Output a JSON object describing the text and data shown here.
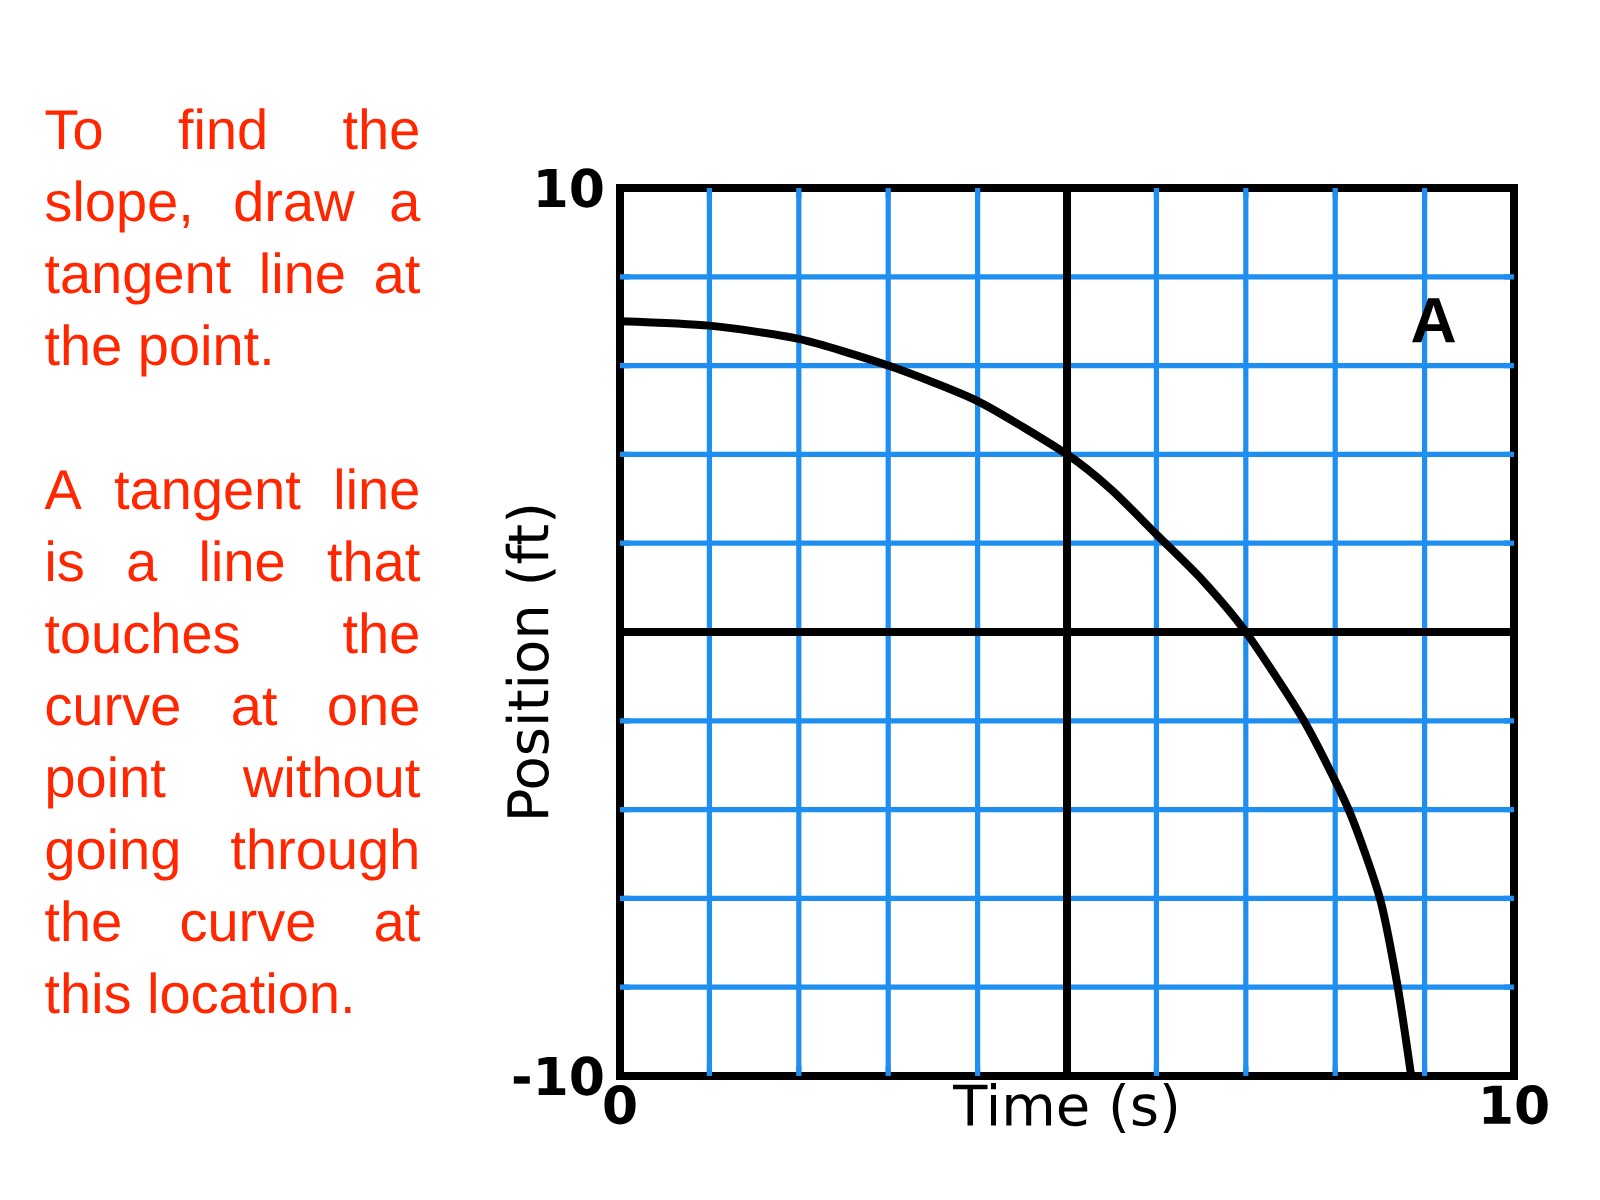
{
  "chart_data": {
    "type": "line",
    "xlabel": "Time (s)",
    "ylabel": "Position (ft)",
    "annotations": [
      "To find the slope, draw a tangent line at the point.",
      "A tangent line is a line that touches the curve at one point without going through the curve at this location.",
      "A"
    ],
    "x": [
      0,
      1,
      2,
      3,
      4,
      5,
      5.5,
      6,
      6.5,
      7,
      7.65,
      8.15,
      8.5,
      8.7,
      8.85
    ],
    "values": [
      7,
      6.9,
      6.6,
      6,
      5.2,
      4,
      3.2,
      2.2,
      1.2,
      0,
      -2,
      -4,
      -6,
      -8,
      -10
    ],
    "color": "#000000",
    "xlim": [
      0,
      10
    ],
    "ylim": [
      -10,
      10
    ],
    "xticks": [
      0,
      {
        "value": 1,
        "label": null
      },
      {
        "value": 2,
        "label": null
      },
      {
        "value": 3,
        "label": null
      },
      {
        "value": 4,
        "label": null
      },
      {
        "value": 6,
        "label": null
      },
      {
        "value": 7,
        "label": null
      },
      {
        "value": 8,
        "label": null
      },
      {
        "value": 9,
        "label": null
      },
      10
    ],
    "yticks": [
      -10,
      {
        "value": -8,
        "label": null
      },
      {
        "value": -6,
        "label": null
      },
      {
        "value": -4,
        "label": null
      },
      {
        "value": -2,
        "label": null
      },
      {
        "value": 2,
        "label": null
      },
      {
        "value": 4,
        "label": null
      },
      {
        "value": 6,
        "label": null
      },
      {
        "value": 8,
        "label": null
      },
      10
    ],
    "grid": true,
    "ref_lines": [
      {
        "axis": "x",
        "value": 5,
        "color": "#000000"
      },
      {
        "axis": "y",
        "value": 0,
        "color": "#000000"
      }
    ]
  }
}
